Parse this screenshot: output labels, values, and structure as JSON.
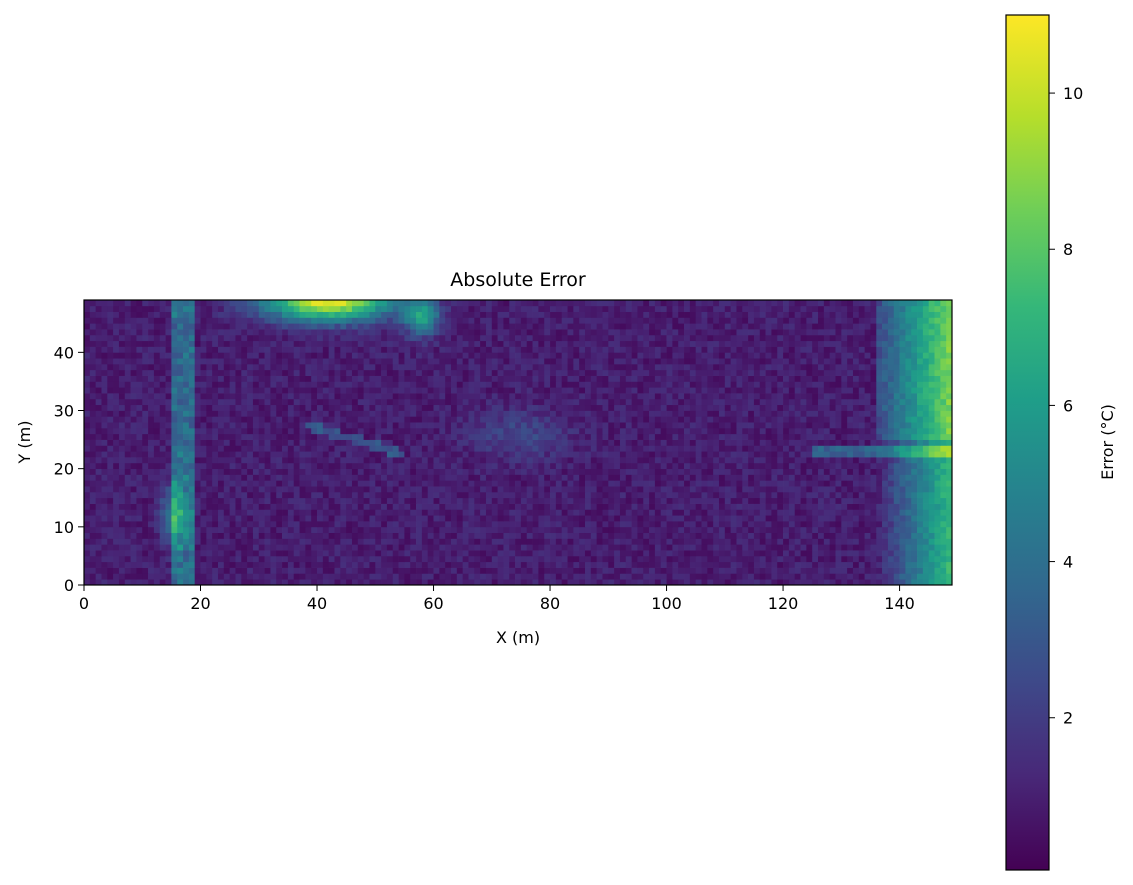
{
  "chart_data": {
    "type": "heatmap",
    "title": "Absolute Error",
    "xlabel": "X (m)",
    "ylabel": "Y (m)",
    "xlim": [
      0,
      149
    ],
    "ylim": [
      0,
      49
    ],
    "xticks": [
      0,
      20,
      40,
      60,
      80,
      100,
      120,
      140
    ],
    "yticks": [
      0,
      10,
      20,
      30,
      40
    ],
    "grid": false,
    "colormap": "viridis",
    "colorbar": {
      "label": "Error (°C)",
      "range": [
        0.05,
        11.0
      ],
      "ticks": [
        2,
        4,
        6,
        8,
        10
      ]
    },
    "regions": [
      {
        "desc": "high error blob along top edge",
        "x": [
          30,
          60
        ],
        "y": [
          43,
          49
        ],
        "peak": 10.5
      },
      {
        "desc": "high error band along right edge",
        "x": [
          137,
          149
        ],
        "y": [
          0,
          49
        ],
        "peak": 8.5
      },
      {
        "desc": "moderate error near left column",
        "x": [
          12,
          20
        ],
        "y": [
          0,
          45
        ],
        "peak": 6.5
      },
      {
        "desc": "background",
        "x": [
          0,
          149
        ],
        "y": [
          0,
          49
        ],
        "typical": 0.8
      }
    ],
    "colors": {
      "viridis": [
        "#440154",
        "#482878",
        "#3e4989",
        "#31688e",
        "#26828e",
        "#1f9e89",
        "#35b779",
        "#6ece58",
        "#b5de2b",
        "#fde725"
      ]
    }
  }
}
